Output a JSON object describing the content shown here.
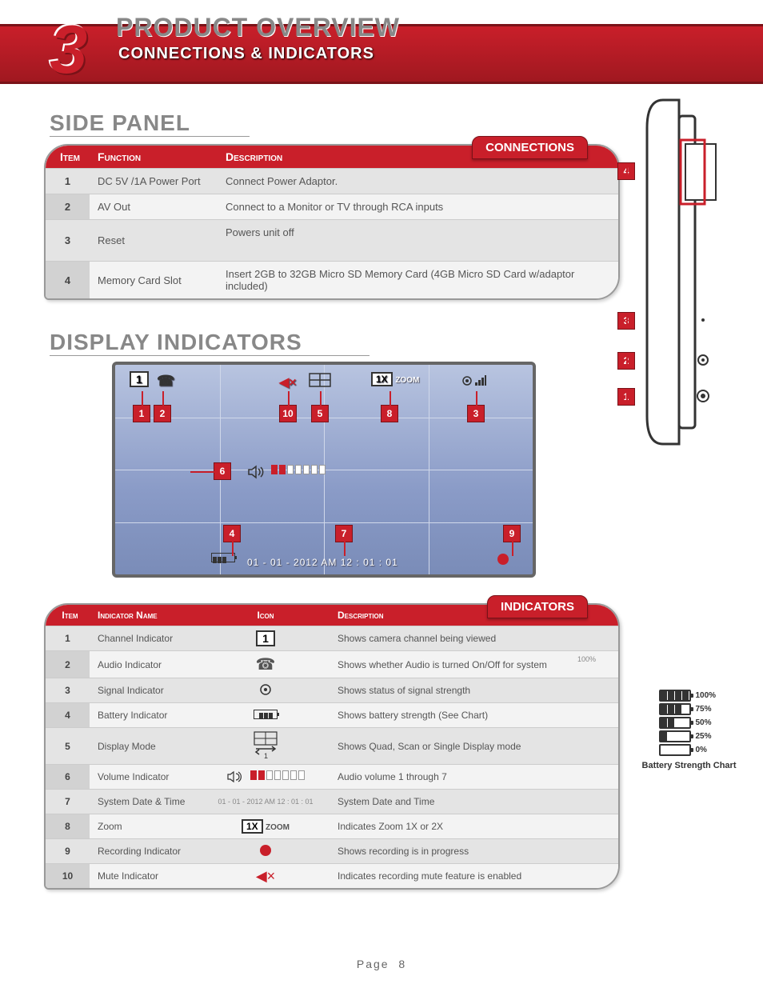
{
  "chapter_number": "3",
  "header": {
    "title": "PRODUCT OVERVIEW",
    "subtitle": "CONNECTIONS & INDICATORS"
  },
  "sections": {
    "side_panel": "SIDE PANEL",
    "display_indicators": "DISPLAY INDICATORS"
  },
  "connections": {
    "pill": "CONNECTIONS",
    "headers": [
      "Item",
      "Function",
      "Description"
    ],
    "rows": [
      {
        "item": "1",
        "func": "DC 5V /1A Power Port",
        "desc": "Connect Power Adaptor."
      },
      {
        "item": "2",
        "func": "AV Out",
        "desc": "Connect to a Monitor or TV through RCA inputs"
      },
      {
        "item": "3",
        "func": "Reset",
        "desc": "Powers unit off"
      },
      {
        "item": "4",
        "func": "Memory Card Slot",
        "desc": "Insert 2GB to 32GB Micro SD Memory Card (4GB Micro SD Card w/adaptor included)"
      }
    ]
  },
  "display": {
    "datetime": "01 - 01 - 2012   AM 12 : 01 : 01",
    "zoom_label": "ZOOM",
    "zoom_value": "1X",
    "channel": "1",
    "tags": [
      "1",
      "2",
      "10",
      "5",
      "8",
      "3",
      "6",
      "4",
      "7",
      "9"
    ]
  },
  "indicators": {
    "pill": "INDICATORS",
    "headers": [
      "Item",
      "Indicator Name",
      "Icon",
      "Description"
    ],
    "rows": [
      {
        "item": "1",
        "name": "Channel Indicator",
        "icon": "channel",
        "desc": "Shows camera channel being viewed"
      },
      {
        "item": "2",
        "name": "Audio Indicator",
        "icon": "audio",
        "desc": "Shows whether Audio is turned On/Off for system"
      },
      {
        "item": "3",
        "name": "Signal Indicator",
        "icon": "signal",
        "desc": "Shows status of signal strength"
      },
      {
        "item": "4",
        "name": "Battery Indicator",
        "icon": "battery",
        "desc": "Shows battery strength (See Chart)"
      },
      {
        "item": "5",
        "name": "Display Mode",
        "icon": "display-mode",
        "desc": "Shows Quad, Scan or Single Display mode"
      },
      {
        "item": "6",
        "name": "Volume Indicator",
        "icon": "volume",
        "desc": "Audio volume 1 through 7"
      },
      {
        "item": "7",
        "name": "System Date & Time",
        "icon": "datetime",
        "desc": "System Date and Time"
      },
      {
        "item": "8",
        "name": "Zoom",
        "icon": "zoom",
        "desc": "Indicates Zoom 1X or 2X"
      },
      {
        "item": "9",
        "name": "Recording Indicator",
        "icon": "record",
        "desc": "Shows recording is in progress"
      },
      {
        "item": "10",
        "name": "Mute Indicator",
        "icon": "mute",
        "desc": "Indicates recording mute feature is enabled"
      }
    ]
  },
  "side_callouts": [
    "4",
    "3",
    "2",
    "1"
  ],
  "battery_chart": {
    "title": "Battery Strength Chart",
    "levels": [
      {
        "pct": "100%",
        "bars": 4
      },
      {
        "pct": "75%",
        "bars": 3
      },
      {
        "pct": "50%",
        "bars": 2
      },
      {
        "pct": "25%",
        "bars": 1
      },
      {
        "pct": "0%",
        "bars": 0
      }
    ]
  },
  "extra_100pct": "100%",
  "footer": {
    "page_label": "Page",
    "page_number": "8"
  },
  "colors": {
    "brand_red": "#c91f2a",
    "brand_red_dark": "#7a1218",
    "screen_top": "#b8c4e0",
    "screen_bot": "#7a8cb8",
    "row_a": "#f3f3f3",
    "row_b": "#e4e4e4"
  }
}
